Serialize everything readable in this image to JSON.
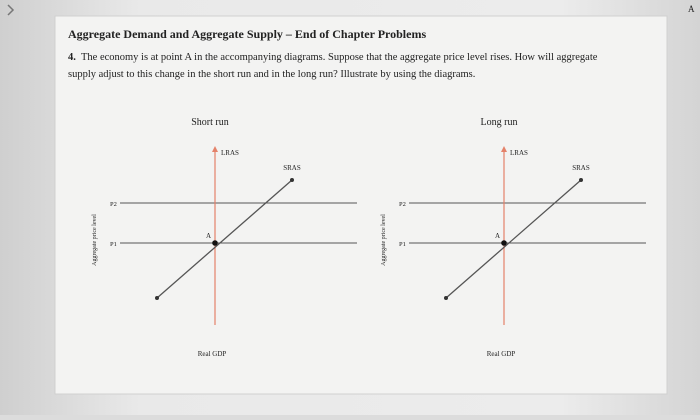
{
  "corner_label": "A",
  "header": {
    "title": "Aggregate Demand and Aggregate Supply – End of Chapter Problems"
  },
  "question": {
    "number": "4.",
    "text_line1": "The economy is at point A in the accompanying diagrams. Suppose that the aggregate price level rises. How will aggregate",
    "text_line2": "supply adjust to this change in the short run and in the long run? Illustrate by using the diagrams."
  },
  "diagrams": [
    {
      "title": "Short run",
      "lras": "LRAS",
      "sras": "SRAS",
      "p2": "P2",
      "p1": "P1",
      "point": "A",
      "y_axis": "Aggregate price level",
      "x_axis": "Real GDP"
    },
    {
      "title": "Long run",
      "lras": "LRAS",
      "sras": "SRAS",
      "p2": "P2",
      "p1": "P1",
      "point": "A",
      "y_axis": "Aggregate price level",
      "x_axis": "Real GDP"
    }
  ]
}
